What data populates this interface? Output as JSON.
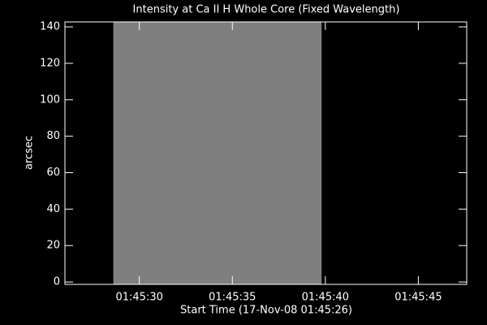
{
  "chart_data": {
    "type": "image",
    "title": "Intensity at Ca II H Whole Core (Fixed Wavelength)",
    "xlabel": "Start Time (17-Nov-08 01:45:26)",
    "ylabel": "arcsec",
    "xlim": [
      0,
      21.6
    ],
    "xticks": [
      {
        "value": 4,
        "label": "01:45:30"
      },
      {
        "value": 9,
        "label": "01:45:35"
      },
      {
        "value": 14,
        "label": "01:45:40"
      },
      {
        "value": 19,
        "label": "01:45:45"
      }
    ],
    "ylim": [
      -1.3,
      142.7
    ],
    "yticks": [
      0,
      20,
      40,
      60,
      80,
      100,
      120,
      140
    ],
    "image": {
      "x": [
        2.6,
        13.8
      ],
      "color": "#7f7f7f"
    }
  }
}
